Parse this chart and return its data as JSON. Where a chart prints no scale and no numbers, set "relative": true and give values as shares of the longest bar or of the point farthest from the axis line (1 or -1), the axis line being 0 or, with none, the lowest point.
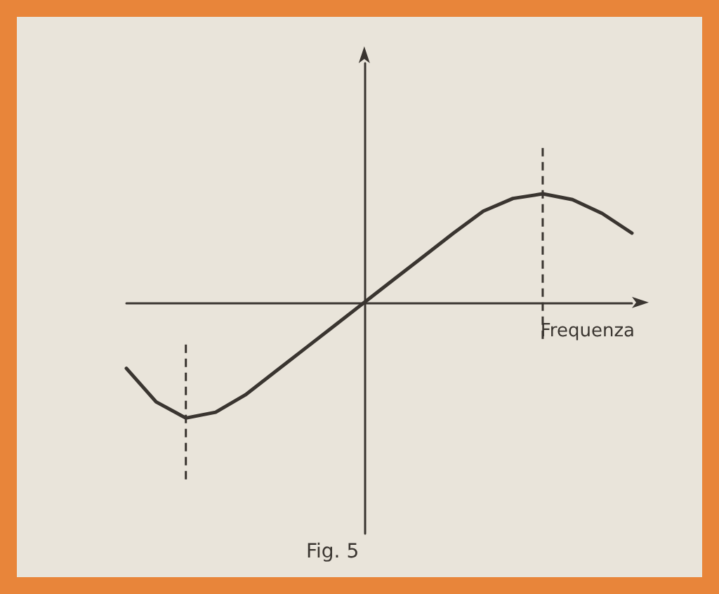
{
  "chart_data": {
    "type": "line",
    "relative": true,
    "xlabel": "Frequenza",
    "annotations": [
      "Fig. 5"
    ],
    "categories": [
      null,
      null,
      null,
      null,
      null,
      null,
      null,
      null,
      null,
      null,
      null,
      null,
      null,
      null,
      null,
      null,
      null,
      null
    ],
    "series": [
      {
        "color": "#3a3530",
        "values": [
          -0.57,
          -0.86,
          -1.0,
          -0.95,
          -0.8,
          -0.6,
          -0.4,
          -0.2,
          0,
          0.2,
          0.4,
          0.6,
          0.79,
          0.9,
          0.94,
          0.89,
          0.77,
          0.6
        ]
      }
    ],
    "marker": "none",
    "line_style": "solid"
  }
}
